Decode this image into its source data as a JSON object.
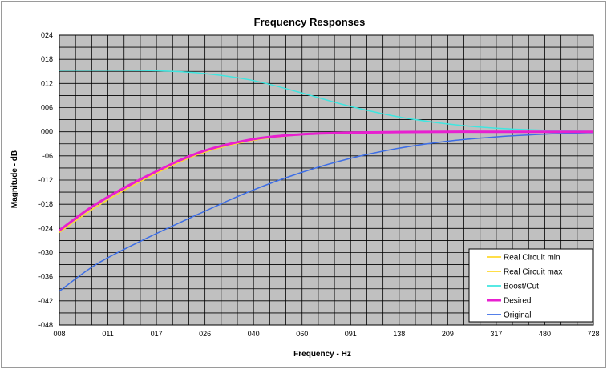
{
  "chart_data": {
    "type": "line",
    "title": "Frequency Responses",
    "xlabel": "Frequency - Hz",
    "ylabel": "Magnitude - dB",
    "x_scale": "log",
    "x_ticks": [
      "008",
      "011",
      "017",
      "026",
      "040",
      "060",
      "091",
      "138",
      "209",
      "317",
      "480",
      "728"
    ],
    "y_ticks": [
      "024",
      "018",
      "012",
      "006",
      "000",
      "-06",
      "-012",
      "-018",
      "-024",
      "-030",
      "-036",
      "-042",
      "-048"
    ],
    "xlim": [
      8,
      728
    ],
    "ylim": [
      -48,
      24
    ],
    "grid": true,
    "plot_background": "#c0c0c0",
    "legend_position": "bottom-right",
    "x": [
      8,
      11,
      17,
      26,
      40,
      60,
      91,
      138,
      209,
      317,
      480,
      728
    ],
    "series": [
      {
        "name": "Real Circuit min",
        "color": "#ffd92e",
        "values": [
          -25,
          -18.5,
          -11.3,
          -5.6,
          -2.3,
          -0.8,
          -0.3,
          -0.1,
          0,
          0,
          0,
          0
        ]
      },
      {
        "name": "Real Circuit max",
        "color": "#ffd92e",
        "values": [
          -24.6,
          -18,
          -10.9,
          -5.3,
          -2.1,
          -0.7,
          -0.25,
          -0.1,
          0,
          0,
          0,
          0
        ]
      },
      {
        "name": "Boost/Cut",
        "color": "#3fe6e0",
        "values": [
          15.3,
          15.3,
          15.2,
          14.6,
          12.9,
          9.9,
          6.5,
          3.8,
          2.0,
          0.9,
          0.4,
          0.1
        ]
      },
      {
        "name": "Desired",
        "color": "#e81fd0",
        "values": [
          -24.5,
          -17.8,
          -10.8,
          -5.2,
          -2.0,
          -0.7,
          -0.25,
          -0.08,
          0,
          0,
          0,
          0
        ]
      },
      {
        "name": "Original",
        "color": "#3d6ee6",
        "values": [
          -39.6,
          -32.8,
          -26.2,
          -20.4,
          -14.8,
          -10.4,
          -6.8,
          -4.2,
          -2.4,
          -1.3,
          -0.6,
          -0.2
        ]
      }
    ]
  }
}
